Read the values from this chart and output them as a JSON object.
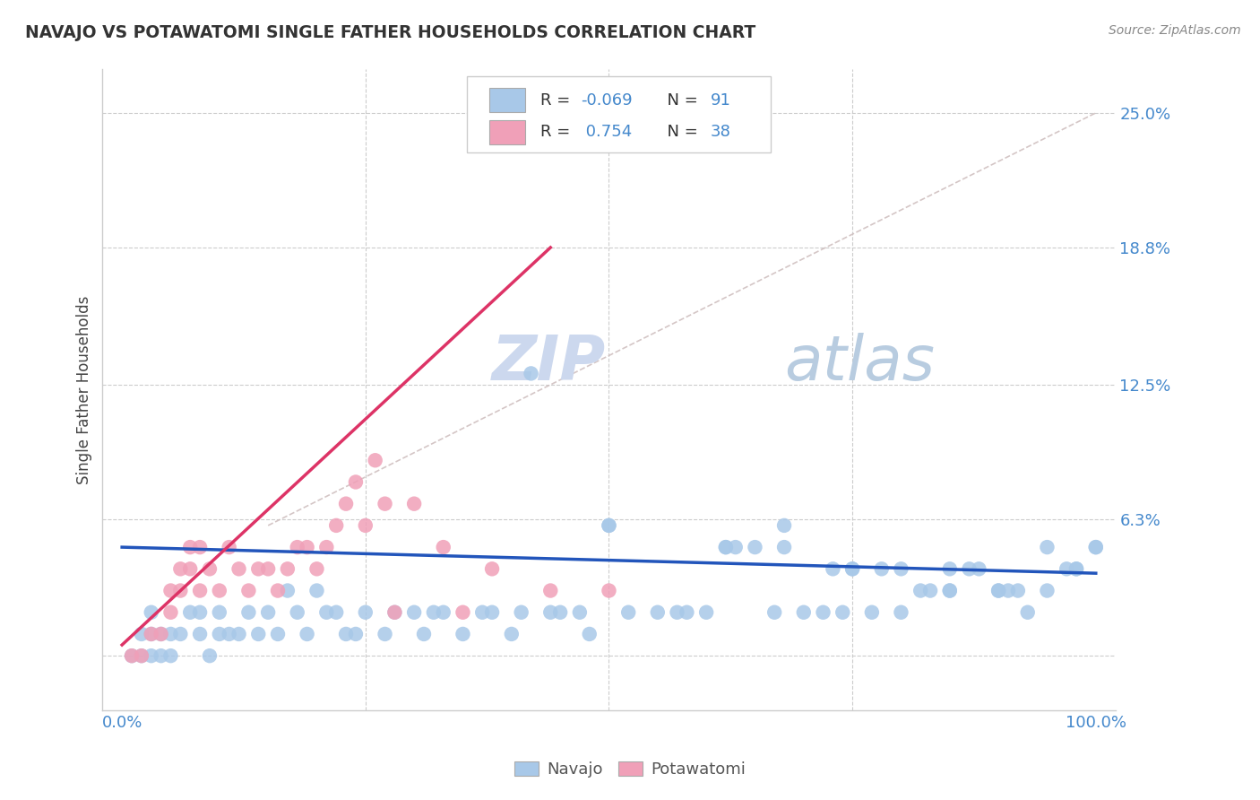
{
  "title": "NAVAJO VS POTAWATOMI SINGLE FATHER HOUSEHOLDS CORRELATION CHART",
  "source_text": "Source: ZipAtlas.com",
  "ylabel": "Single Father Households",
  "navajo_R": -0.069,
  "navajo_N": 91,
  "potawatomi_R": 0.754,
  "potawatomi_N": 38,
  "navajo_color": "#a8c8e8",
  "potawatomi_color": "#f0a0b8",
  "navajo_line_color": "#2255bb",
  "potawatomi_line_color": "#dd3366",
  "diagonal_line_color": "#d0c0c0",
  "background_color": "#ffffff",
  "grid_color": "#cccccc",
  "title_color": "#333333",
  "axis_label_color": "#444444",
  "tick_label_color": "#4488cc",
  "watermark_zip_color": "#ccd8ee",
  "watermark_atlas_color": "#b8cce0",
  "legend_text_color": "#333333",
  "legend_value_color": "#4488cc",
  "source_color": "#888888",
  "navajo_x": [
    1,
    2,
    2,
    3,
    3,
    3,
    4,
    4,
    5,
    5,
    6,
    7,
    8,
    8,
    9,
    10,
    10,
    11,
    12,
    13,
    14,
    15,
    16,
    17,
    18,
    19,
    20,
    21,
    22,
    23,
    24,
    25,
    27,
    28,
    30,
    31,
    32,
    33,
    35,
    37,
    38,
    40,
    41,
    42,
    44,
    45,
    47,
    48,
    50,
    50,
    52,
    55,
    57,
    58,
    60,
    62,
    63,
    65,
    67,
    68,
    70,
    72,
    73,
    74,
    75,
    77,
    78,
    80,
    82,
    83,
    85,
    87,
    88,
    90,
    91,
    92,
    93,
    95,
    97,
    98,
    100,
    100,
    85,
    90,
    75,
    95,
    62,
    68,
    80,
    85,
    98
  ],
  "navajo_y": [
    0,
    0,
    1,
    0,
    1,
    2,
    0,
    1,
    0,
    1,
    1,
    2,
    1,
    2,
    0,
    1,
    2,
    1,
    1,
    2,
    1,
    2,
    1,
    3,
    2,
    1,
    3,
    2,
    2,
    1,
    1,
    2,
    1,
    2,
    2,
    1,
    2,
    2,
    1,
    2,
    2,
    1,
    2,
    13,
    2,
    2,
    2,
    1,
    6,
    6,
    2,
    2,
    2,
    2,
    2,
    5,
    5,
    5,
    2,
    6,
    2,
    2,
    4,
    2,
    4,
    2,
    4,
    2,
    3,
    3,
    3,
    4,
    4,
    3,
    3,
    3,
    2,
    3,
    4,
    4,
    5,
    5,
    3,
    3,
    4,
    5,
    5,
    5,
    4,
    4,
    4
  ],
  "potawatomi_x": [
    1,
    2,
    3,
    4,
    5,
    5,
    6,
    6,
    7,
    7,
    8,
    8,
    9,
    10,
    11,
    12,
    13,
    14,
    15,
    16,
    17,
    18,
    19,
    20,
    21,
    22,
    23,
    25,
    27,
    30,
    33,
    38,
    44,
    50,
    24,
    26,
    28,
    35
  ],
  "potawatomi_y": [
    0,
    0,
    1,
    1,
    2,
    3,
    3,
    4,
    4,
    5,
    5,
    3,
    4,
    3,
    5,
    4,
    3,
    4,
    4,
    3,
    4,
    5,
    5,
    4,
    5,
    6,
    7,
    6,
    7,
    7,
    5,
    4,
    3,
    3,
    8,
    9,
    2,
    2
  ],
  "navajo_line_x0": 0,
  "navajo_line_x1": 100,
  "navajo_line_y0": 5.0,
  "navajo_line_y1": 3.8,
  "potawatomi_line_x0": 0,
  "potawatomi_line_x1": 44,
  "potawatomi_line_y0": 0.5,
  "potawatomi_line_y1": 18.8,
  "diag_x0": 15,
  "diag_x1": 100,
  "diag_y0": 6,
  "diag_y1": 25,
  "ytick_vals": [
    0,
    6.3,
    12.5,
    18.8,
    25.0
  ],
  "ytick_labels": [
    "",
    "6.3%",
    "12.5%",
    "18.8%",
    "25.0%"
  ],
  "xtick_vals": [
    0,
    100
  ],
  "xtick_labels": [
    "0.0%",
    "100.0%"
  ],
  "vline_positions": [
    25,
    50,
    75
  ],
  "xlim": [
    -2,
    102
  ],
  "ylim": [
    -2.5,
    27
  ]
}
